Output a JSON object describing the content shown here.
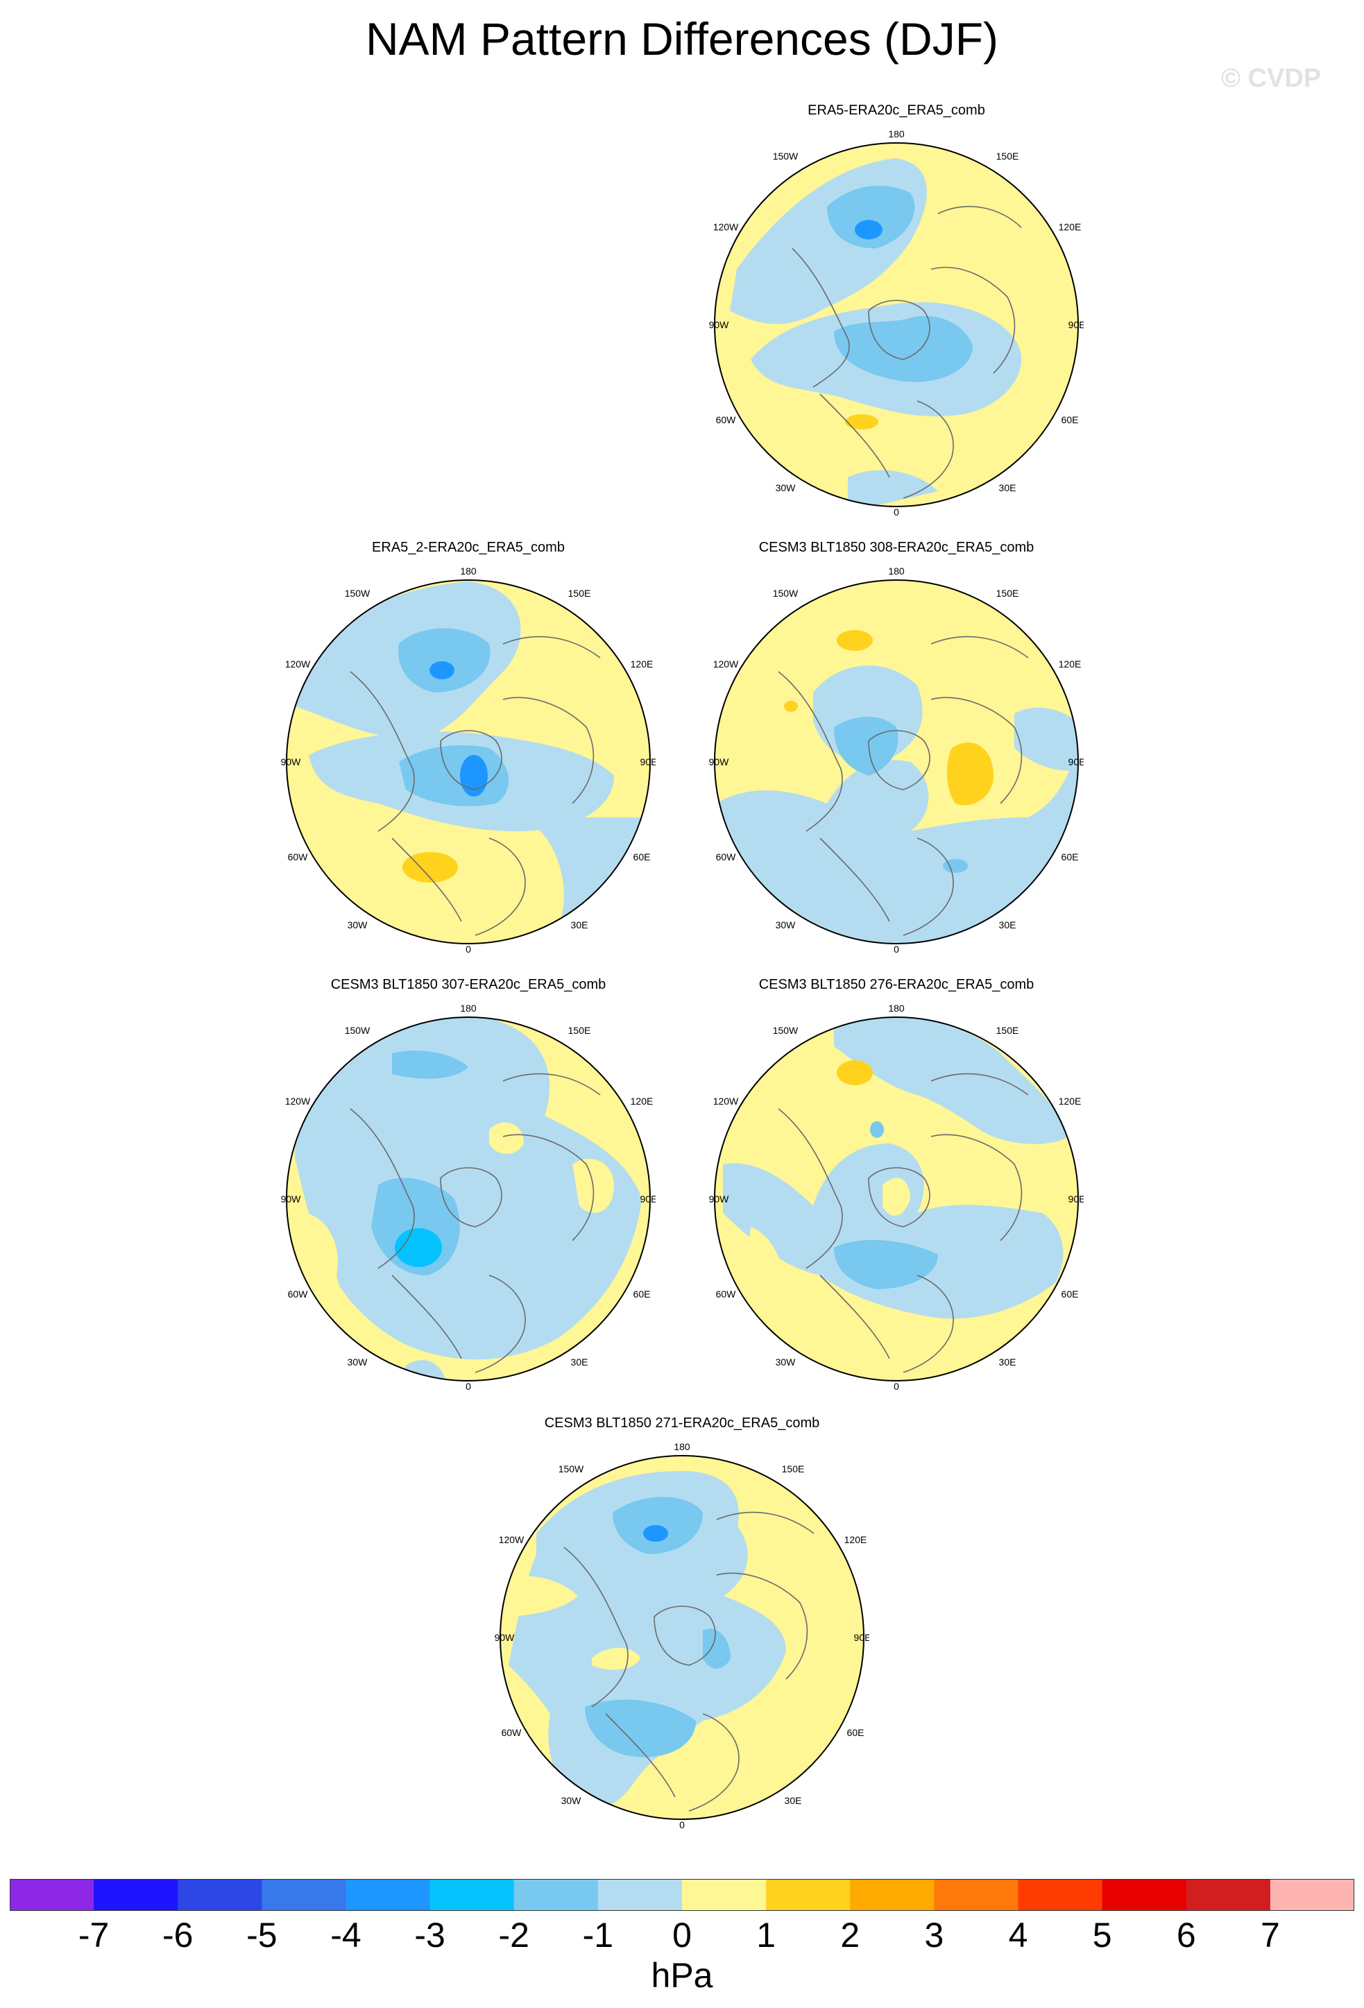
{
  "title": "NAM Pattern Differences (DJF)",
  "watermark": "© CVDP",
  "colors": {
    "land_outline": "#6a6a6a",
    "map_border": "#000000",
    "levels": [
      "#8c28e6",
      "#1e14ff",
      "#2d46e6",
      "#3778eb",
      "#1e96ff",
      "#05c3ff",
      "#78c8f0",
      "#b4dcf0",
      "#fff696",
      "#ffd21e",
      "#ffaa00",
      "#ff780a",
      "#ff3c00",
      "#e60000",
      "#d21e1e",
      "#ffb4b4"
    ]
  },
  "longitude_labels": {
    "top": "180",
    "upper_left": "150W",
    "upper_right": "150E",
    "left_upper": "120W",
    "right_upper": "120E",
    "left": "90W",
    "right": "90E",
    "left_lower": "60W",
    "right_lower": "60E",
    "lower_left": "30W",
    "lower_right": "30E",
    "bottom": "0"
  },
  "panels": [
    {
      "title": "ERA5-ERA20c_ERA5_comb"
    },
    {
      "title": "ERA5_2-ERA20c_ERA5_comb"
    },
    {
      "title": "CESM3 BLT1850 308-ERA20c_ERA5_comb"
    },
    {
      "title": "CESM3 BLT1850 307-ERA20c_ERA5_comb"
    },
    {
      "title": "CESM3 BLT1850 276-ERA20c_ERA5_comb"
    },
    {
      "title": "CESM3 BLT1850 271-ERA20c_ERA5_comb"
    }
  ],
  "colorbar": {
    "labels": [
      "-7",
      "-6",
      "-5",
      "-4",
      "-3",
      "-2",
      "-1",
      "0",
      "1",
      "2",
      "3",
      "4",
      "5",
      "6",
      "7"
    ],
    "unit": "hPa"
  }
}
